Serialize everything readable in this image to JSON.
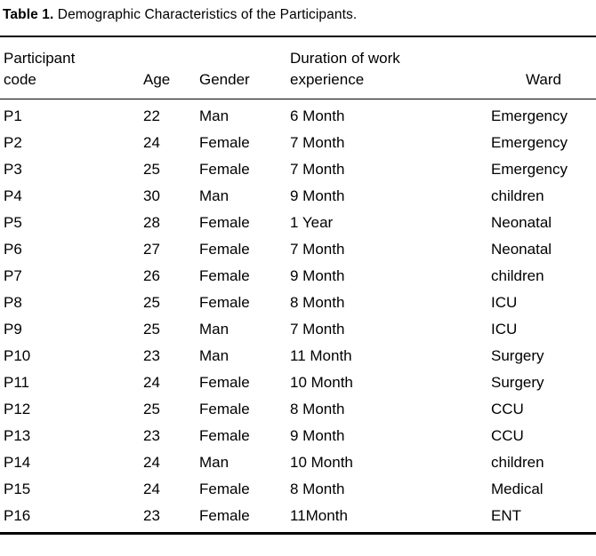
{
  "page": {
    "background": "#ffffff",
    "text_color": "#000000"
  },
  "caption": {
    "label": "Table 1.",
    "title": " Demographic Characteristics of the Participants."
  },
  "table": {
    "columns": [
      {
        "key": "code",
        "label": "Participant\ncode"
      },
      {
        "key": "age",
        "label": "Age"
      },
      {
        "key": "gender",
        "label": "Gender"
      },
      {
        "key": "dur",
        "label": "Duration of work\nexperience"
      },
      {
        "key": "ward",
        "label": "Ward"
      }
    ],
    "rows": [
      [
        "P1",
        "22",
        "Man",
        "6 Month",
        "Emergency"
      ],
      [
        "P2",
        "24",
        "Female",
        "7 Month",
        "Emergency"
      ],
      [
        "P3",
        "25",
        "Female",
        "7 Month",
        "Emergency"
      ],
      [
        "P4",
        "30",
        "Man",
        "9 Month",
        "children"
      ],
      [
        "P5",
        "28",
        "Female",
        "1 Year",
        "Neonatal"
      ],
      [
        "P6",
        "27",
        "Female",
        "7 Month",
        "Neonatal"
      ],
      [
        "P7",
        "26",
        "Female",
        "9 Month",
        "children"
      ],
      [
        "P8",
        "25",
        "Female",
        "8 Month",
        "ICU"
      ],
      [
        "P9",
        "25",
        "Man",
        "7 Month",
        "ICU"
      ],
      [
        "P10",
        "23",
        "Man",
        "11 Month",
        "Surgery"
      ],
      [
        "P11",
        "24",
        "Female",
        "10 Month",
        "Surgery"
      ],
      [
        "P12",
        "25",
        "Female",
        "8 Month",
        "CCU"
      ],
      [
        "P13",
        "23",
        "Female",
        "9 Month",
        "CCU"
      ],
      [
        "P14",
        "24",
        "Man",
        "10 Month",
        "children"
      ],
      [
        "P15",
        "24",
        "Female",
        "8 Month",
        "Medical"
      ],
      [
        "P16",
        "23",
        "Female",
        "11Month",
        "ENT"
      ]
    ]
  },
  "chart_data": {
    "type": "table",
    "title": "Table 1. Demographic Characteristics of the Participants.",
    "headers": [
      "Participant code",
      "Age",
      "Gender",
      "Duration of work experience",
      "Ward"
    ],
    "rows": [
      [
        "P1",
        22,
        "Man",
        "6 Month",
        "Emergency"
      ],
      [
        "P2",
        24,
        "Female",
        "7 Month",
        "Emergency"
      ],
      [
        "P3",
        25,
        "Female",
        "7 Month",
        "Emergency"
      ],
      [
        "P4",
        30,
        "Man",
        "9 Month",
        "children"
      ],
      [
        "P5",
        28,
        "Female",
        "1 Year",
        "Neonatal"
      ],
      [
        "P6",
        27,
        "Female",
        "7 Month",
        "Neonatal"
      ],
      [
        "P7",
        26,
        "Female",
        "9 Month",
        "children"
      ],
      [
        "P8",
        25,
        "Female",
        "8 Month",
        "ICU"
      ],
      [
        "P9",
        25,
        "Man",
        "7 Month",
        "ICU"
      ],
      [
        "P10",
        23,
        "Man",
        "11 Month",
        "Surgery"
      ],
      [
        "P11",
        24,
        "Female",
        "10 Month",
        "Surgery"
      ],
      [
        "P12",
        25,
        "Female",
        "8 Month",
        "CCU"
      ],
      [
        "P13",
        23,
        "Female",
        "9 Month",
        "CCU"
      ],
      [
        "P14",
        24,
        "Man",
        "10 Month",
        "children"
      ],
      [
        "P15",
        24,
        "Female",
        "8 Month",
        "Medical"
      ],
      [
        "P16",
        23,
        "Female",
        "11Month",
        "ENT"
      ]
    ]
  }
}
